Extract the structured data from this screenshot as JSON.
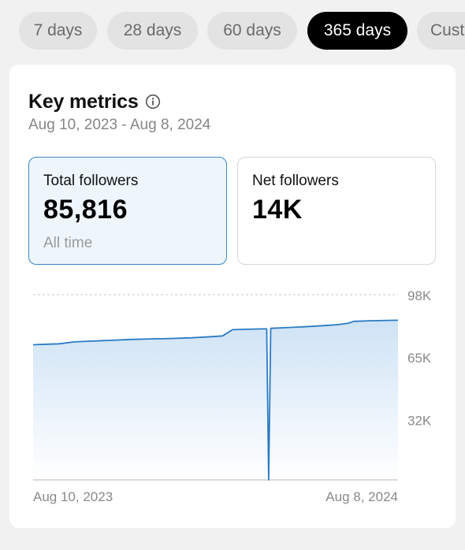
{
  "tabs": [
    {
      "label": "7 days",
      "active": false
    },
    {
      "label": "28 days",
      "active": false
    },
    {
      "label": "60 days",
      "active": false
    },
    {
      "label": "365 days",
      "active": true
    },
    {
      "label": "Custom",
      "active": false
    }
  ],
  "card": {
    "title": "Key metrics",
    "info_icon": "info-circle-icon",
    "date_range": "Aug 10, 2023 - Aug 8, 2024"
  },
  "metrics": {
    "total": {
      "label": "Total followers",
      "value": "85,816",
      "sub": "All time",
      "selected": true
    },
    "net": {
      "label": "Net followers",
      "value": "14K",
      "selected": false
    }
  },
  "colors": {
    "accent": "#3a86c7",
    "line": "#2b7bc4",
    "fill_top": "#cfe3f5",
    "active_tab_bg": "#000000"
  },
  "chart_data": {
    "type": "area",
    "x_start_label": "Aug 10, 2023",
    "x_end_label": "Aug 8, 2024",
    "x": [
      "2023-08-10",
      "2023-08-25",
      "2023-09-05",
      "2023-09-20",
      "2023-10-05",
      "2023-10-25",
      "2023-11-15",
      "2023-12-05",
      "2023-12-25",
      "2024-01-15",
      "2024-02-05",
      "2024-02-15",
      "2024-02-25",
      "2024-03-10",
      "2024-03-25",
      "2024-03-30",
      "2024-04-01",
      "2024-04-03",
      "2024-04-15",
      "2024-05-05",
      "2024-05-25",
      "2024-06-10",
      "2024-06-20",
      "2024-06-25",
      "2024-07-10",
      "2024-08-08"
    ],
    "values": [
      71500,
      71800,
      72000,
      73000,
      73400,
      73800,
      74300,
      74600,
      74800,
      75200,
      75800,
      76200,
      79500,
      79700,
      79900,
      79900,
      0,
      80200,
      80500,
      81000,
      81600,
      82200,
      83000,
      83900,
      84200,
      84500
    ],
    "y_ticks": [
      "98K",
      "65K",
      "32K"
    ],
    "y_tick_values": [
      98000,
      65000,
      32000
    ],
    "ylim": [
      0,
      98000
    ],
    "grid": "dashed horizontal",
    "xlabel": "",
    "ylabel": ""
  }
}
